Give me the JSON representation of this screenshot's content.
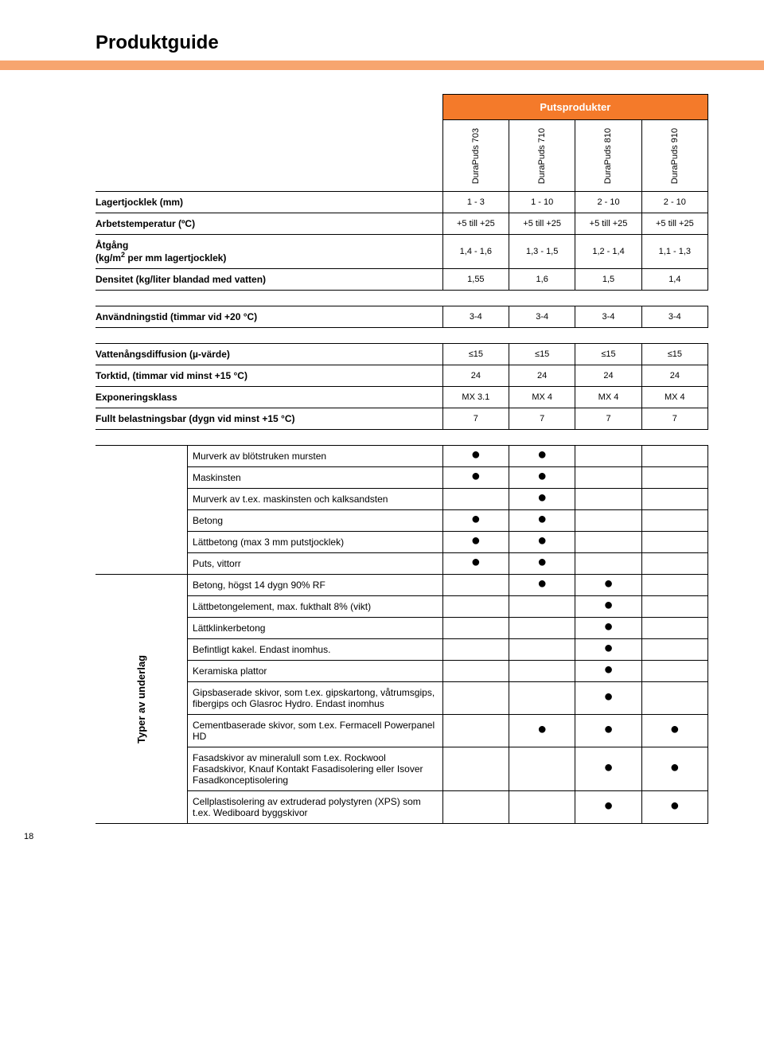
{
  "page_number": "18",
  "title": "Produktguide",
  "group_header": "Putsprodukter",
  "columns": [
    "DuraPuds 703",
    "DuraPuds 710",
    "DuraPuds 810",
    "DuraPuds 910"
  ],
  "section1": [
    {
      "label": "Lagertjocklek (mm)",
      "bold": true,
      "values": [
        "1 - 3",
        "1 - 10",
        "2 - 10",
        "2 - 10"
      ]
    },
    {
      "label": "Arbetstemperatur (ºC)",
      "bold": true,
      "values": [
        "+5 till +25",
        "+5 till +25",
        "+5 till +25",
        "+5 till +25"
      ]
    },
    {
      "label_html": "Åtgång<br>(kg/m<span class=\"sup\">2</span> per mm lagertjocklek)",
      "bold": true,
      "values": [
        "1,4 - 1,6",
        "1,3 - 1,5",
        "1,2 - 1,4",
        "1,1 - 1,3"
      ]
    },
    {
      "label": "Densitet (kg/liter blandad med vatten)",
      "bold": true,
      "values": [
        "1,55",
        "1,6",
        "1,5",
        "1,4"
      ]
    }
  ],
  "section2": [
    {
      "label": "Användningstid (timmar vid +20 °C)",
      "bold": true,
      "values": [
        "3-4",
        "3-4",
        "3-4",
        "3-4"
      ]
    }
  ],
  "section3": [
    {
      "label": "Vattenångsdiffusion (µ-värde)",
      "bold": true,
      "values": [
        "≤15",
        "≤15",
        "≤15",
        "≤15"
      ]
    },
    {
      "label": "Torktid, (timmar vid minst +15 °C)",
      "bold": true,
      "values": [
        "24",
        "24",
        "24",
        "24"
      ]
    },
    {
      "label": "Exponeringsklass",
      "bold": true,
      "values": [
        "MX 3.1",
        "MX 4",
        "MX 4",
        "MX 4"
      ]
    },
    {
      "label": "Fullt belastningsbar (dygn vid minst +15 °C)",
      "bold": true,
      "values": [
        "7",
        "7",
        "7",
        "7"
      ]
    }
  ],
  "underlag_label": "Typer av underlag",
  "substrate_rows_top": [
    {
      "label": "Murverk av blötstruken mursten",
      "dots": [
        true,
        true,
        false,
        false
      ]
    },
    {
      "label": "Maskinsten",
      "dots": [
        true,
        true,
        false,
        false
      ]
    },
    {
      "label": "Murverk av t.ex. maskinsten och kalksandsten",
      "dots": [
        false,
        true,
        false,
        false
      ]
    },
    {
      "label": "Betong",
      "dots": [
        true,
        true,
        false,
        false
      ]
    },
    {
      "label": "Lättbetong (max 3 mm putstjocklek)",
      "dots": [
        true,
        true,
        false,
        false
      ]
    },
    {
      "label": "Puts, vittorr",
      "dots": [
        true,
        true,
        false,
        false
      ]
    }
  ],
  "substrate_rows_grouped": [
    {
      "label": "Betong, högst 14 dygn 90% RF",
      "dots": [
        false,
        true,
        true,
        false
      ]
    },
    {
      "label": "Lättbetongelement, max. fukthalt 8% (vikt)",
      "dots": [
        false,
        false,
        true,
        false
      ]
    },
    {
      "label": "Lättklinkerbetong",
      "dots": [
        false,
        false,
        true,
        false
      ]
    },
    {
      "label": "Befintligt kakel. Endast inomhus.",
      "dots": [
        false,
        false,
        true,
        false
      ]
    },
    {
      "label": "Keramiska plattor",
      "dots": [
        false,
        false,
        true,
        false
      ]
    },
    {
      "label": "Gipsbaserade skivor, som t.ex. gipskartong, våtrumsgips, fibergips och Glasroc Hydro. Endast inomhus",
      "dots": [
        false,
        false,
        true,
        false
      ]
    },
    {
      "label": "Cementbaserade skivor, som t.ex. Fermacell Powerpanel HD",
      "dots": [
        false,
        true,
        true,
        true
      ]
    },
    {
      "label": "Fasadskivor av mineralull som t.ex. Rockwool Fasadskivor, Knauf Kontakt Fasadisolering eller Isover Fasadkonceptisolering",
      "dots": [
        false,
        false,
        true,
        true
      ]
    },
    {
      "label": "Cellplastisolering av extruderad polystyren (XPS) som t.ex. Wediboard byggskivor",
      "dots": [
        false,
        false,
        true,
        true
      ]
    }
  ],
  "colors": {
    "orange": "#f47a2a",
    "strip": "#f7a56f",
    "text": "#000000",
    "bg": "#ffffff"
  }
}
